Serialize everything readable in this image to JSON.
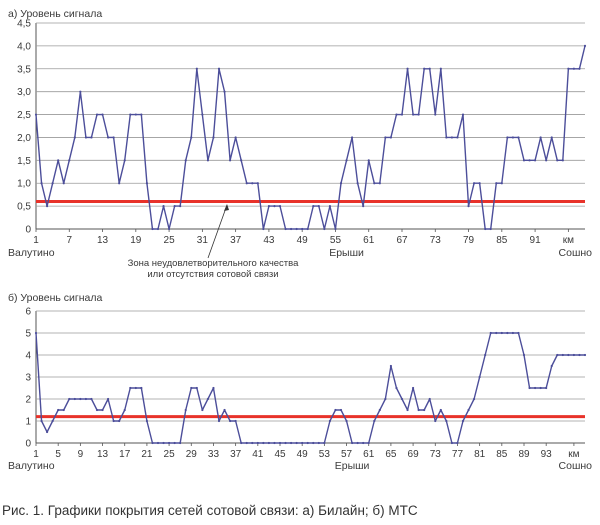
{
  "colors": {
    "series": "#4c4e9a",
    "threshold": "#e8322a",
    "grid": "#9a9a9a",
    "text": "#3a3a3a"
  },
  "annotation": {
    "line1": "Зона неудовлетворительного качества",
    "line2": "или отсутствия сотовой связи"
  },
  "caption": "Рис. 1. Графики покрытия сетей сотовой связи: а) Билайн; б) МТС",
  "chart_data": [
    {
      "type": "line",
      "title": "а) Уровень сигнала",
      "xlim": [
        1,
        100
      ],
      "ylim": [
        0,
        4.5
      ],
      "yticks": [
        "0",
        "0,5",
        "1,0",
        "1,5",
        "2,0",
        "2,5",
        "3,0",
        "3,5",
        "4,0",
        "4,5"
      ],
      "xticks": [
        {
          "x": 1,
          "label": "1"
        },
        {
          "x": 7,
          "label": "7"
        },
        {
          "x": 13,
          "label": "13"
        },
        {
          "x": 19,
          "label": "19"
        },
        {
          "x": 25,
          "label": "25"
        },
        {
          "x": 31,
          "label": "31"
        },
        {
          "x": 37,
          "label": "37"
        },
        {
          "x": 43,
          "label": "43"
        },
        {
          "x": 49,
          "label": "49"
        },
        {
          "x": 55,
          "label": "55"
        },
        {
          "x": 61,
          "label": "61"
        },
        {
          "x": 67,
          "label": "67"
        },
        {
          "x": 73,
          "label": "73"
        },
        {
          "x": 79,
          "label": "79"
        },
        {
          "x": 85,
          "label": "85"
        },
        {
          "x": 91,
          "label": "91"
        },
        {
          "x": 97,
          "label": "км"
        }
      ],
      "places": [
        {
          "x": 1,
          "label": "Валутино"
        },
        {
          "x": 57,
          "label": "Ерыши"
        },
        {
          "x": 97,
          "label": "Сошно"
        }
      ],
      "threshold": 0.6,
      "x": [
        1,
        2,
        3,
        4,
        5,
        6,
        7,
        8,
        9,
        10,
        11,
        12,
        13,
        14,
        15,
        16,
        17,
        18,
        19,
        20,
        21,
        22,
        23,
        24,
        25,
        26,
        27,
        28,
        29,
        30,
        31,
        32,
        33,
        34,
        35,
        36,
        37,
        38,
        39,
        40,
        41,
        42,
        43,
        44,
        45,
        46,
        47,
        48,
        49,
        50,
        51,
        52,
        53,
        54,
        55,
        56,
        57,
        58,
        59,
        60,
        61,
        62,
        63,
        64,
        65,
        66,
        67,
        68,
        69,
        70,
        71,
        72,
        73,
        74,
        75,
        76,
        77,
        78,
        79,
        80,
        81,
        82,
        83,
        84,
        85,
        86,
        87,
        88,
        89,
        90,
        91,
        92,
        93,
        94,
        95,
        96,
        97,
        98,
        99,
        100
      ],
      "y": [
        2.5,
        1.0,
        0.5,
        1.0,
        1.5,
        1.0,
        1.5,
        2.0,
        3.0,
        2.0,
        2.0,
        2.5,
        2.5,
        2.0,
        2.0,
        1.0,
        1.5,
        2.5,
        2.5,
        2.5,
        1.0,
        0,
        0,
        0.5,
        0,
        0.5,
        0.5,
        1.5,
        2.0,
        3.5,
        2.5,
        1.5,
        2.0,
        3.5,
        3.0,
        1.5,
        2.0,
        1.5,
        1.0,
        1.0,
        1.0,
        0,
        0.5,
        0.5,
        0.5,
        0,
        0,
        0,
        0,
        0,
        0.5,
        0.5,
        0,
        0.5,
        0,
        1.0,
        1.5,
        2.0,
        1.0,
        0.5,
        1.5,
        1.0,
        1.0,
        2.0,
        2.0,
        2.5,
        2.5,
        3.5,
        2.5,
        2.5,
        3.5,
        3.5,
        2.5,
        3.5,
        2.0,
        2.0,
        2.0,
        2.5,
        0.5,
        1.0,
        1.0,
        0,
        0,
        1.0,
        1.0,
        2.0,
        2.0,
        2.0,
        1.5,
        1.5,
        1.5,
        2.0,
        1.5,
        2.0,
        1.5,
        1.5,
        3.5,
        3.5,
        3.5,
        4.0
      ]
    },
    {
      "type": "line",
      "title": "б) Уровень сигнала",
      "xlim": [
        1,
        100
      ],
      "ylim": [
        0,
        6
      ],
      "yticks": [
        "0",
        "1",
        "2",
        "3",
        "4",
        "5",
        "6"
      ],
      "xticks": [
        {
          "x": 1,
          "label": "1"
        },
        {
          "x": 5,
          "label": "5"
        },
        {
          "x": 9,
          "label": "9"
        },
        {
          "x": 13,
          "label": "13"
        },
        {
          "x": 17,
          "label": "17"
        },
        {
          "x": 21,
          "label": "21"
        },
        {
          "x": 25,
          "label": "25"
        },
        {
          "x": 29,
          "label": "29"
        },
        {
          "x": 33,
          "label": "33"
        },
        {
          "x": 37,
          "label": "37"
        },
        {
          "x": 41,
          "label": "41"
        },
        {
          "x": 45,
          "label": "45"
        },
        {
          "x": 49,
          "label": "49"
        },
        {
          "x": 53,
          "label": "53"
        },
        {
          "x": 57,
          "label": "57"
        },
        {
          "x": 61,
          "label": "61"
        },
        {
          "x": 65,
          "label": "65"
        },
        {
          "x": 69,
          "label": "69"
        },
        {
          "x": 73,
          "label": "73"
        },
        {
          "x": 77,
          "label": "77"
        },
        {
          "x": 81,
          "label": "81"
        },
        {
          "x": 85,
          "label": "85"
        },
        {
          "x": 89,
          "label": "89"
        },
        {
          "x": 93,
          "label": "93"
        },
        {
          "x": 98,
          "label": "км"
        }
      ],
      "places": [
        {
          "x": 1,
          "label": "Валутино"
        },
        {
          "x": 58,
          "label": "Ерыши"
        },
        {
          "x": 98,
          "label": "Сошно"
        }
      ],
      "threshold": 1.2,
      "x": [
        1,
        2,
        3,
        4,
        5,
        6,
        7,
        8,
        9,
        10,
        11,
        12,
        13,
        14,
        15,
        16,
        17,
        18,
        19,
        20,
        21,
        22,
        23,
        24,
        25,
        26,
        27,
        28,
        29,
        30,
        31,
        32,
        33,
        34,
        35,
        36,
        37,
        38,
        39,
        40,
        41,
        42,
        43,
        44,
        45,
        46,
        47,
        48,
        49,
        50,
        51,
        52,
        53,
        54,
        55,
        56,
        57,
        58,
        59,
        60,
        61,
        62,
        63,
        64,
        65,
        66,
        67,
        68,
        69,
        70,
        71,
        72,
        73,
        74,
        75,
        76,
        77,
        78,
        79,
        80,
        81,
        82,
        83,
        84,
        85,
        86,
        87,
        88,
        89,
        90,
        91,
        92,
        93,
        94,
        95,
        96,
        97,
        98,
        99,
        100
      ],
      "y": [
        5,
        1,
        0.5,
        1,
        1.5,
        1.5,
        2,
        2,
        2,
        2,
        2,
        1.5,
        1.5,
        2,
        1,
        1,
        1.5,
        2.5,
        2.5,
        2.5,
        1,
        0,
        0,
        0,
        0,
        0,
        0,
        1.5,
        2.5,
        2.5,
        1.5,
        2,
        2.5,
        1,
        1.5,
        1,
        1,
        0,
        0,
        0,
        0,
        0,
        0,
        0,
        0,
        0,
        0,
        0,
        0,
        0,
        0,
        0,
        0,
        1,
        1.5,
        1.5,
        1,
        0,
        0,
        0,
        0,
        1,
        1.5,
        2,
        3.5,
        2.5,
        2,
        1.5,
        2.5,
        1.5,
        1.5,
        2,
        1,
        1.5,
        1,
        0,
        0,
        1,
        1.5,
        2,
        3,
        4,
        5,
        5,
        5,
        5,
        5,
        5,
        4,
        2.5,
        2.5,
        2.5,
        2.5,
        3.5,
        4,
        4,
        4,
        4,
        4,
        4
      ]
    }
  ]
}
